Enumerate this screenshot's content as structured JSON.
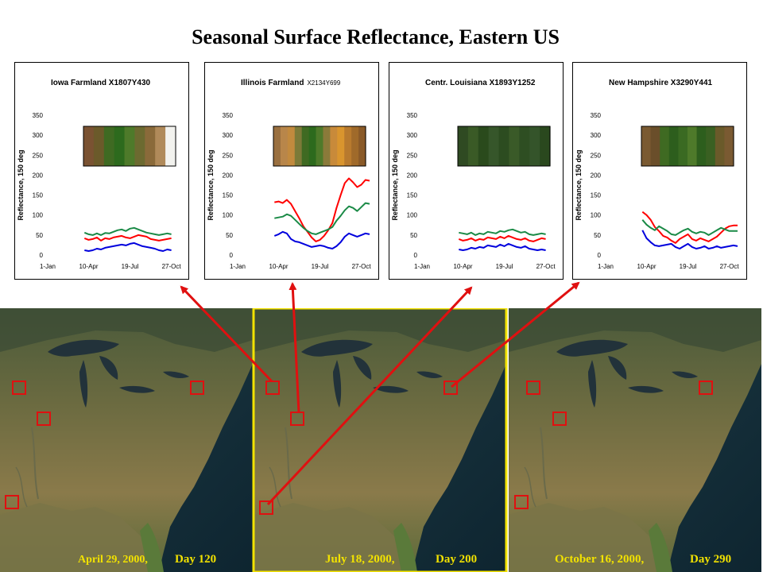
{
  "title": "Seasonal Surface Reflectance, Eastern US",
  "colors": {
    "red": "#ff0000",
    "green": "#1a8a46",
    "blue": "#0000dd",
    "caption": "#f2e200",
    "map_border": "#f2e200",
    "marker": "#e01010",
    "arrow": "#e01010"
  },
  "chart_data": [
    {
      "type": "line",
      "title": "Iowa Farmland X1807Y430",
      "title_suffix": "",
      "ylabel": "Reflectance, 150 deg",
      "yticks": [
        0,
        50,
        100,
        150,
        200,
        250,
        300,
        350
      ],
      "ylim": [
        0,
        350
      ],
      "xlim": [
        1,
        320
      ],
      "xticks": [
        1,
        100,
        200,
        300
      ],
      "xticklabels": [
        "1-Jan",
        "10-Apr",
        "19-Jul",
        "27-Oct"
      ],
      "swatch": [
        "#7a5232",
        "#6b5a2a",
        "#3f6a22",
        "#2d6a1d",
        "#4e7a2a",
        "#6c6a30",
        "#8a6a3a",
        "#b08a5a",
        "#f2f2ee"
      ],
      "series": [
        {
          "color": "red",
          "x": [
            90,
            100,
            110,
            120,
            130,
            140,
            150,
            160,
            170,
            180,
            190,
            200,
            210,
            220,
            230,
            240,
            250,
            260,
            270,
            280,
            290,
            300
          ],
          "y": [
            42,
            38,
            40,
            44,
            36,
            42,
            40,
            44,
            46,
            48,
            44,
            42,
            46,
            50,
            48,
            46,
            40,
            38,
            36,
            38,
            40,
            42
          ]
        },
        {
          "color": "green",
          "x": [
            90,
            100,
            110,
            120,
            130,
            140,
            150,
            160,
            170,
            180,
            190,
            200,
            210,
            220,
            230,
            240,
            250,
            260,
            270,
            280,
            290,
            300
          ],
          "y": [
            56,
            52,
            50,
            54,
            50,
            55,
            54,
            58,
            62,
            64,
            60,
            66,
            68,
            64,
            60,
            56,
            54,
            52,
            50,
            52,
            54,
            52
          ]
        },
        {
          "color": "blue",
          "x": [
            90,
            100,
            110,
            120,
            130,
            140,
            150,
            160,
            170,
            180,
            190,
            200,
            210,
            220,
            230,
            240,
            250,
            260,
            270,
            280,
            290,
            300
          ],
          "y": [
            12,
            10,
            12,
            16,
            14,
            18,
            20,
            22,
            24,
            26,
            24,
            28,
            30,
            26,
            22,
            20,
            18,
            16,
            12,
            10,
            14,
            12
          ]
        }
      ]
    },
    {
      "type": "line",
      "title": "Illinois Farmland",
      "title_suffix": "X2134Y699",
      "ylabel": "Reflectance, 150 deg",
      "yticks": [
        0,
        50,
        100,
        150,
        200,
        250,
        300,
        350
      ],
      "ylim": [
        0,
        350
      ],
      "xlim": [
        1,
        320
      ],
      "xticks": [
        1,
        100,
        200,
        300
      ],
      "xticklabels": [
        "1-Jan",
        "10-Apr",
        "19-Jul",
        "27-Oct"
      ],
      "swatch": [
        "#9a7040",
        "#b8864a",
        "#c28a3e",
        "#7c7a38",
        "#3f6a22",
        "#2d6a1d",
        "#4e7a2a",
        "#8a7a3a",
        "#c88a3a",
        "#d9952e",
        "#b87a2e",
        "#a06a2a",
        "#8a5a28"
      ],
      "series": [
        {
          "color": "red",
          "x": [
            90,
            100,
            110,
            120,
            130,
            140,
            150,
            160,
            170,
            180,
            190,
            200,
            210,
            220,
            230,
            240,
            250,
            260,
            270,
            280,
            290,
            300,
            310,
            320
          ],
          "y": [
            132,
            134,
            130,
            138,
            128,
            110,
            92,
            72,
            58,
            44,
            34,
            38,
            48,
            62,
            80,
            118,
            150,
            180,
            192,
            182,
            170,
            176,
            188,
            186
          ]
        },
        {
          "color": "green",
          "x": [
            90,
            100,
            110,
            120,
            130,
            140,
            150,
            160,
            170,
            180,
            190,
            200,
            210,
            220,
            230,
            240,
            250,
            260,
            270,
            280,
            290,
            300,
            310,
            320
          ],
          "y": [
            92,
            94,
            96,
            102,
            98,
            88,
            78,
            68,
            60,
            54,
            52,
            56,
            60,
            64,
            70,
            86,
            98,
            112,
            122,
            118,
            110,
            120,
            130,
            128
          ]
        },
        {
          "color": "blue",
          "x": [
            90,
            100,
            110,
            120,
            130,
            140,
            150,
            160,
            170,
            180,
            190,
            200,
            210,
            220,
            230,
            240,
            250,
            260,
            270,
            280,
            290,
            300,
            310,
            320
          ],
          "y": [
            48,
            52,
            58,
            54,
            40,
            34,
            32,
            28,
            24,
            20,
            22,
            24,
            22,
            18,
            16,
            22,
            32,
            46,
            54,
            50,
            46,
            50,
            54,
            52
          ]
        }
      ]
    },
    {
      "type": "line",
      "title": "Centr. Louisiana X1893Y1252",
      "title_suffix": "",
      "ylabel": "Reflectance, 150 deg",
      "yticks": [
        0,
        50,
        100,
        150,
        200,
        250,
        300,
        350
      ],
      "ylim": [
        0,
        350
      ],
      "xlim": [
        1,
        320
      ],
      "xticks": [
        1,
        100,
        200,
        300
      ],
      "xticklabels": [
        "1-Jan",
        "10-Apr",
        "19-Jul",
        "27-Oct"
      ],
      "swatch": [
        "#2f4a22",
        "#3a5a26",
        "#2a4a1c",
        "#36562a",
        "#2c4c20",
        "#3a5a28",
        "#2e4e22",
        "#34542a",
        "#2a481e"
      ],
      "series": [
        {
          "color": "red",
          "x": [
            90,
            100,
            110,
            120,
            130,
            140,
            150,
            160,
            170,
            180,
            190,
            200,
            210,
            220,
            230,
            240,
            250,
            260,
            270,
            280,
            290,
            300
          ],
          "y": [
            40,
            36,
            38,
            42,
            36,
            40,
            38,
            44,
            42,
            40,
            46,
            42,
            48,
            44,
            40,
            38,
            42,
            36,
            34,
            38,
            42,
            40
          ]
        },
        {
          "color": "green",
          "x": [
            90,
            100,
            110,
            120,
            130,
            140,
            150,
            160,
            170,
            180,
            190,
            200,
            210,
            220,
            230,
            240,
            250,
            260,
            270,
            280,
            290,
            300
          ],
          "y": [
            56,
            54,
            52,
            56,
            50,
            54,
            52,
            58,
            56,
            54,
            60,
            58,
            62,
            64,
            60,
            56,
            58,
            52,
            50,
            52,
            54,
            52
          ]
        },
        {
          "color": "blue",
          "x": [
            90,
            100,
            110,
            120,
            130,
            140,
            150,
            160,
            170,
            180,
            190,
            200,
            210,
            220,
            230,
            240,
            250,
            260,
            270,
            280,
            290,
            300
          ],
          "y": [
            14,
            12,
            14,
            18,
            16,
            20,
            18,
            24,
            22,
            20,
            26,
            22,
            28,
            24,
            20,
            18,
            22,
            16,
            14,
            12,
            14,
            12
          ]
        }
      ]
    },
    {
      "type": "line",
      "title": "New Hampshire X3290Y441",
      "title_suffix": "",
      "ylabel": "Reflectance, 150 deg",
      "yticks": [
        0,
        50,
        100,
        150,
        200,
        250,
        300,
        350
      ],
      "ylim": [
        0,
        350
      ],
      "xlim": [
        1,
        320
      ],
      "xticks": [
        1,
        100,
        200,
        300
      ],
      "xticklabels": [
        "1-Jan",
        "10-Apr",
        "19-Jul",
        "27-Oct"
      ],
      "swatch": [
        "#7a5a32",
        "#6a4e2a",
        "#3f6a22",
        "#2d5e1d",
        "#3a6a22",
        "#4e7a2a",
        "#2d5e1d",
        "#3a6022",
        "#6a5a2a",
        "#7a5a32"
      ],
      "series": [
        {
          "color": "red",
          "x": [
            90,
            100,
            110,
            120,
            130,
            140,
            150,
            160,
            170,
            180,
            190,
            200,
            210,
            220,
            230,
            240,
            250,
            260,
            270,
            280,
            290,
            300,
            310,
            320
          ],
          "y": [
            108,
            100,
            88,
            70,
            60,
            48,
            44,
            36,
            30,
            40,
            46,
            52,
            40,
            36,
            42,
            38,
            34,
            40,
            46,
            56,
            66,
            72,
            74,
            74
          ]
        },
        {
          "color": "green",
          "x": [
            90,
            100,
            110,
            120,
            130,
            140,
            150,
            160,
            170,
            180,
            190,
            200,
            210,
            220,
            230,
            240,
            250,
            260,
            270,
            280,
            290,
            300,
            310,
            320
          ],
          "y": [
            88,
            76,
            68,
            62,
            72,
            66,
            60,
            52,
            50,
            56,
            62,
            66,
            58,
            54,
            58,
            56,
            50,
            56,
            62,
            68,
            64,
            60,
            60,
            60
          ]
        },
        {
          "color": "blue",
          "x": [
            90,
            100,
            110,
            120,
            130,
            140,
            150,
            160,
            170,
            180,
            190,
            200,
            210,
            220,
            230,
            240,
            250,
            260,
            270,
            280,
            290,
            300,
            310,
            320
          ],
          "y": [
            62,
            42,
            32,
            24,
            22,
            24,
            26,
            28,
            20,
            16,
            22,
            28,
            20,
            16,
            18,
            22,
            16,
            18,
            22,
            18,
            20,
            22,
            24,
            22
          ]
        }
      ]
    }
  ],
  "maps": [
    {
      "caption_date": "April 29, 2000,",
      "caption_day": "Day 120"
    },
    {
      "caption_date": "July 18, 2000,",
      "caption_day": "Day 200"
    },
    {
      "caption_date": "October 16, 2000,",
      "caption_day": "Day 290"
    }
  ]
}
